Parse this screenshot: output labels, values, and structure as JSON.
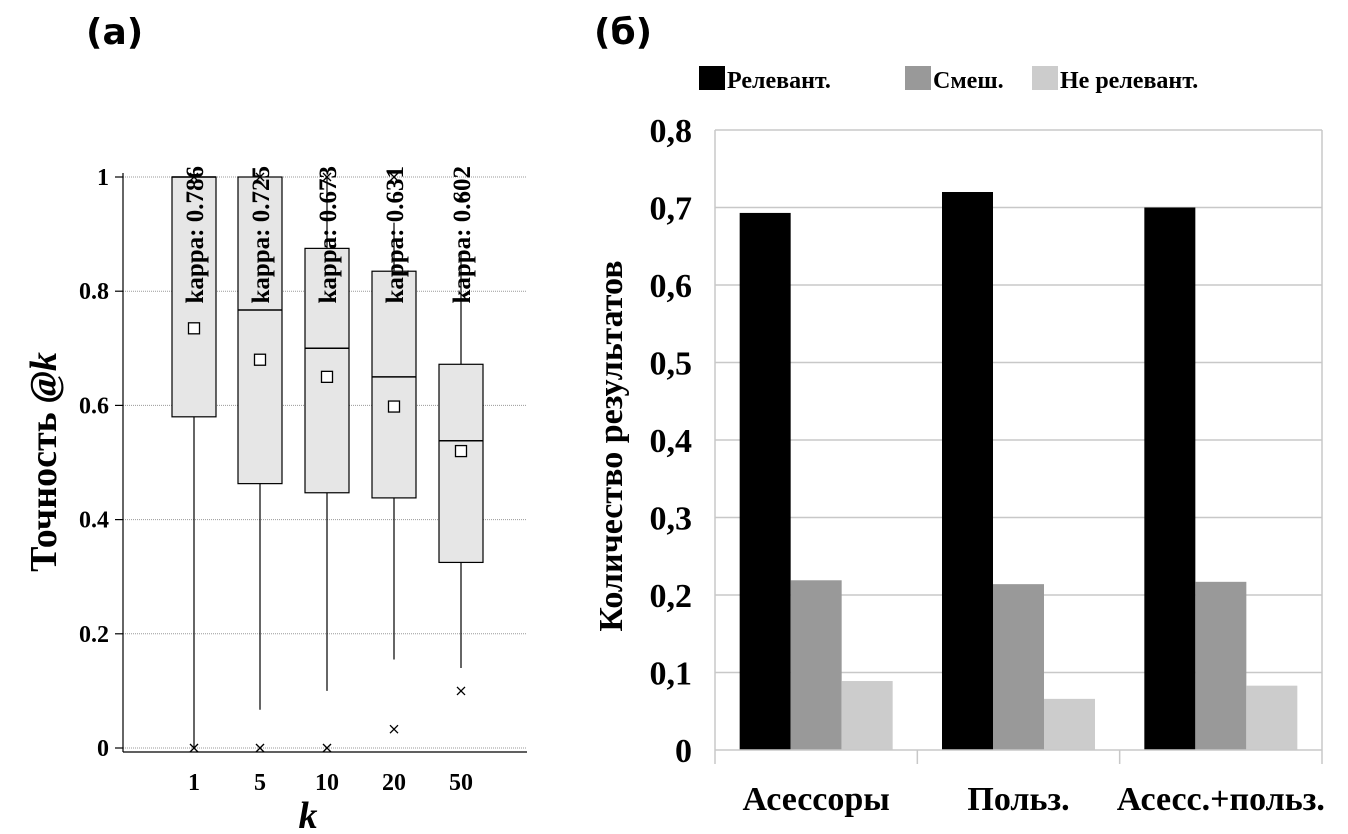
{
  "panels": {
    "a_label": "(а)",
    "b_label": "(б)"
  },
  "chart_data": [
    {
      "type": "box",
      "ylabel_main": "Точность ",
      "ylabel_italic": "@k",
      "xlabel": "k",
      "ylim": [
        0,
        1
      ],
      "yticks": [
        "0",
        "0.2",
        "0.4",
        "0.6",
        "0.8",
        "1"
      ],
      "grid": true,
      "categories": [
        "1",
        "5",
        "10",
        "20",
        "50"
      ],
      "kappa_labels": [
        "kappa: 0.786",
        "kappa: 0.725",
        "kappa: 0.673",
        "kappa: 0.631",
        "kappa: 0.602"
      ],
      "boxes": [
        {
          "whisker_low": 0.0,
          "q1": 0.58,
          "median": 1.0,
          "q3": 1.0,
          "whisker_high": 1.0,
          "mean": 0.735,
          "outliers": [
            0.0,
            1.0
          ]
        },
        {
          "whisker_low": 0.067,
          "q1": 0.463,
          "median": 0.767,
          "q3": 1.0,
          "whisker_high": 1.0,
          "mean": 0.68,
          "outliers": [
            0.0,
            1.0
          ]
        },
        {
          "whisker_low": 0.1,
          "q1": 0.447,
          "median": 0.7,
          "q3": 0.875,
          "whisker_high": 1.0,
          "mean": 0.65,
          "outliers": [
            0.0,
            1.0
          ]
        },
        {
          "whisker_low": 0.155,
          "q1": 0.438,
          "median": 0.65,
          "q3": 0.835,
          "whisker_high": 0.92,
          "mean": 0.598,
          "outliers": [
            0.033,
            1.0
          ]
        },
        {
          "whisker_low": 0.14,
          "q1": 0.325,
          "median": 0.538,
          "q3": 0.672,
          "whisker_high": 0.87,
          "mean": 0.52,
          "outliers": [
            0.1,
            0.965
          ]
        }
      ]
    },
    {
      "type": "bar",
      "ylabel": "Количество результатов",
      "ylim": [
        0,
        0.8
      ],
      "yticks": [
        "0",
        "0,1",
        "0,2",
        "0,3",
        "0,4",
        "0,5",
        "0,6",
        "0,7",
        "0,8"
      ],
      "grid": true,
      "legend_position": "top",
      "categories": [
        "Асессоры",
        "Польз.",
        "Асесс.+польз."
      ],
      "series": [
        {
          "name": "Релевант.",
          "color": "#000000",
          "values": [
            0.693,
            0.72,
            0.7
          ]
        },
        {
          "name": "Смеш.",
          "color": "#999999",
          "values": [
            0.219,
            0.214,
            0.217
          ]
        },
        {
          "name": "Не релевант.",
          "color": "#cccccc",
          "values": [
            0.089,
            0.066,
            0.083
          ]
        }
      ]
    }
  ]
}
